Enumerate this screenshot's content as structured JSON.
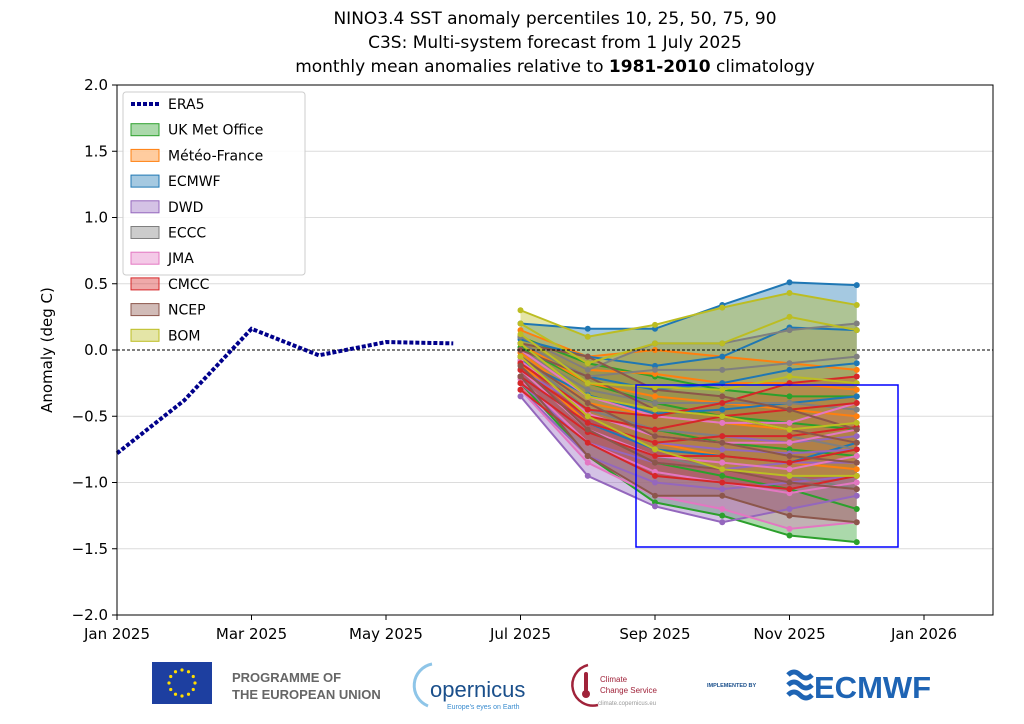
{
  "chart_data": {
    "type": "line",
    "title": {
      "line1": "NINO3.4 SST anomaly percentiles 10, 25, 50, 75, 90",
      "line2": "C3S: Multi-system forecast from 1 July 2025",
      "line3_pre": "monthly mean anomalies relative to ",
      "line3_bold": "1981-2010",
      "line3_post": " climatology"
    },
    "ylabel": "Anomaly (deg C)",
    "xlabel": "",
    "ylim": [
      -2.0,
      2.0
    ],
    "xlim": [
      "2025-01",
      "2026-02"
    ],
    "grid": "horizontal",
    "legend_placement": "top-left",
    "zero_line": "dashed black",
    "y_ticks": [
      "−2.0",
      "−1.5",
      "−1.0",
      "−0.5",
      "0.0",
      "0.5",
      "1.0",
      "1.5",
      "2.0"
    ],
    "y_tick_values": [
      -2.0,
      -1.5,
      -1.0,
      -0.5,
      0.0,
      0.5,
      1.0,
      1.5,
      2.0
    ],
    "x_ticks": [
      "Jan 2025",
      "Mar 2025",
      "May 2025",
      "Jul 2025",
      "Sep 2025",
      "Nov 2025",
      "Jan 2026"
    ],
    "x_tick_dates": [
      "2025-01",
      "2025-03",
      "2025-05",
      "2025-07",
      "2025-09",
      "2025-11",
      "2026-01"
    ],
    "era5": {
      "name": "ERA5",
      "color": "#00008b",
      "dates": [
        "2025-01",
        "2025-02",
        "2025-03",
        "2025-04",
        "2025-05",
        "2025-06"
      ],
      "values": [
        -0.78,
        -0.38,
        0.16,
        -0.04,
        0.06,
        0.05
      ]
    },
    "forecast_dates": [
      "2025-07",
      "2025-08",
      "2025-09",
      "2025-10",
      "2025-11",
      "2025-12"
    ],
    "percentiles": [
      "p10",
      "p25",
      "p50",
      "p75",
      "p90"
    ],
    "models": [
      {
        "name": "UK Met Office",
        "color": "#2ca02c",
        "p10": [
          -0.25,
          -0.8,
          -1.15,
          -1.25,
          -1.4,
          -1.45
        ],
        "p25": [
          -0.15,
          -0.6,
          -0.85,
          -0.95,
          -1.05,
          -1.2
        ],
        "p50": [
          -0.05,
          -0.45,
          -0.6,
          -0.7,
          -0.75,
          -0.8
        ],
        "p75": [
          0.02,
          -0.25,
          -0.4,
          -0.5,
          -0.55,
          -0.6
        ],
        "p90": [
          0.1,
          -0.1,
          -0.2,
          -0.3,
          -0.35,
          -0.35
        ]
      },
      {
        "name": "Météo-France",
        "color": "#ff7f0e",
        "p10": [
          -0.1,
          -0.55,
          -0.7,
          -0.8,
          -0.85,
          -0.9
        ],
        "p25": [
          -0.02,
          -0.4,
          -0.5,
          -0.55,
          -0.6,
          -0.7
        ],
        "p50": [
          0.05,
          -0.25,
          -0.35,
          -0.4,
          -0.45,
          -0.5
        ],
        "p75": [
          0.1,
          -0.15,
          -0.18,
          -0.25,
          -0.25,
          -0.3
        ],
        "p90": [
          0.15,
          -0.05,
          0.0,
          -0.05,
          -0.1,
          -0.15
        ]
      },
      {
        "name": "ECMWF",
        "color": "#1f77b4",
        "p10": [
          -0.2,
          -0.55,
          -0.75,
          -0.8,
          -0.85,
          -0.7
        ],
        "p25": [
          -0.08,
          -0.34,
          -0.48,
          -0.45,
          -0.4,
          -0.35
        ],
        "p50": [
          0.0,
          -0.2,
          -0.3,
          -0.25,
          -0.15,
          -0.1
        ],
        "p75": [
          0.08,
          -0.05,
          -0.12,
          -0.05,
          0.17,
          0.15
        ],
        "p90": [
          0.2,
          0.16,
          0.16,
          0.34,
          0.51,
          0.49
        ]
      },
      {
        "name": "DWD",
        "color": "#9467bd",
        "p10": [
          -0.35,
          -0.95,
          -1.18,
          -1.3,
          -1.2,
          -1.1
        ],
        "p25": [
          -0.3,
          -0.8,
          -1.0,
          -1.05,
          -1.0,
          -0.95
        ],
        "p50": [
          -0.25,
          -0.7,
          -0.85,
          -0.9,
          -0.85,
          -0.85
        ],
        "p75": [
          -0.2,
          -0.55,
          -0.7,
          -0.75,
          -0.78,
          -0.75
        ],
        "p90": [
          -0.15,
          -0.45,
          -0.6,
          -0.65,
          -0.7,
          -0.65
        ]
      },
      {
        "name": "ECCC",
        "color": "#7f7f7f",
        "p10": [
          -0.15,
          -0.6,
          -0.8,
          -0.9,
          -0.95,
          -1.05
        ],
        "p25": [
          -0.05,
          -0.45,
          -0.6,
          -0.65,
          -0.65,
          -0.75
        ],
        "p50": [
          0.0,
          -0.3,
          -0.4,
          -0.4,
          -0.4,
          -0.45
        ],
        "p75": [
          0.05,
          -0.2,
          -0.15,
          -0.15,
          -0.1,
          -0.05
        ],
        "p90": [
          0.1,
          -0.15,
          0.05,
          0.05,
          0.15,
          0.2
        ]
      },
      {
        "name": "JMA",
        "color": "#e377c2",
        "p10": [
          -0.3,
          -0.85,
          -1.1,
          -1.2,
          -1.35,
          -1.3
        ],
        "p25": [
          -0.22,
          -0.7,
          -0.92,
          -1.0,
          -1.08,
          -1.0
        ],
        "p50": [
          -0.15,
          -0.6,
          -0.8,
          -0.85,
          -0.9,
          -0.8
        ],
        "p75": [
          -0.08,
          -0.48,
          -0.65,
          -0.7,
          -0.7,
          -0.6
        ],
        "p90": [
          0.0,
          -0.35,
          -0.5,
          -0.55,
          -0.55,
          -0.4
        ]
      },
      {
        "name": "CMCC",
        "color": "#d62728",
        "p10": [
          -0.3,
          -0.7,
          -0.95,
          -1.0,
          -1.05,
          -0.95
        ],
        "p25": [
          -0.25,
          -0.62,
          -0.8,
          -0.8,
          -0.85,
          -0.75
        ],
        "p50": [
          -0.2,
          -0.55,
          -0.7,
          -0.65,
          -0.65,
          -0.58
        ],
        "p75": [
          -0.15,
          -0.5,
          -0.6,
          -0.5,
          -0.45,
          -0.4
        ],
        "p90": [
          -0.1,
          -0.45,
          -0.5,
          -0.4,
          -0.25,
          -0.2
        ]
      },
      {
        "name": "NCEP",
        "color": "#8c564b",
        "p10": [
          -0.2,
          -0.8,
          -1.1,
          -1.1,
          -1.25,
          -1.3
        ],
        "p25": [
          -0.12,
          -0.6,
          -0.85,
          -0.9,
          -1.0,
          -1.05
        ],
        "p50": [
          -0.05,
          -0.4,
          -0.65,
          -0.7,
          -0.8,
          -0.85
        ],
        "p75": [
          0.0,
          -0.2,
          -0.45,
          -0.5,
          -0.6,
          -0.7
        ],
        "p90": [
          0.05,
          -0.05,
          -0.3,
          -0.35,
          -0.45,
          -0.6
        ]
      },
      {
        "name": "BOM",
        "color": "#bcbd22",
        "p10": [
          -0.05,
          -0.5,
          -0.75,
          -0.9,
          -0.95,
          -0.95
        ],
        "p25": [
          0.05,
          -0.35,
          -0.45,
          -0.5,
          -0.6,
          -0.55
        ],
        "p50": [
          0.12,
          -0.25,
          -0.28,
          -0.3,
          -0.2,
          -0.25
        ],
        "p75": [
          0.2,
          -0.1,
          0.05,
          0.05,
          0.25,
          0.15
        ],
        "p90": [
          0.3,
          0.1,
          0.19,
          0.32,
          0.43,
          0.34
        ]
      }
    ],
    "highlight_box_color": "#0000ff"
  },
  "footer": {
    "eu_text_1": "PROGRAMME OF",
    "eu_text_2": "THE EUROPEAN UNION",
    "copernicus": "opernicus",
    "copernicus_tagline": "Europe's eyes on Earth",
    "c3s_1": "Climate",
    "c3s_2": "Change Service",
    "c3s_url": "climate.copernicus.eu",
    "implemented_by": "IMPLEMENTED BY",
    "ecmwf": "ECMWF"
  }
}
